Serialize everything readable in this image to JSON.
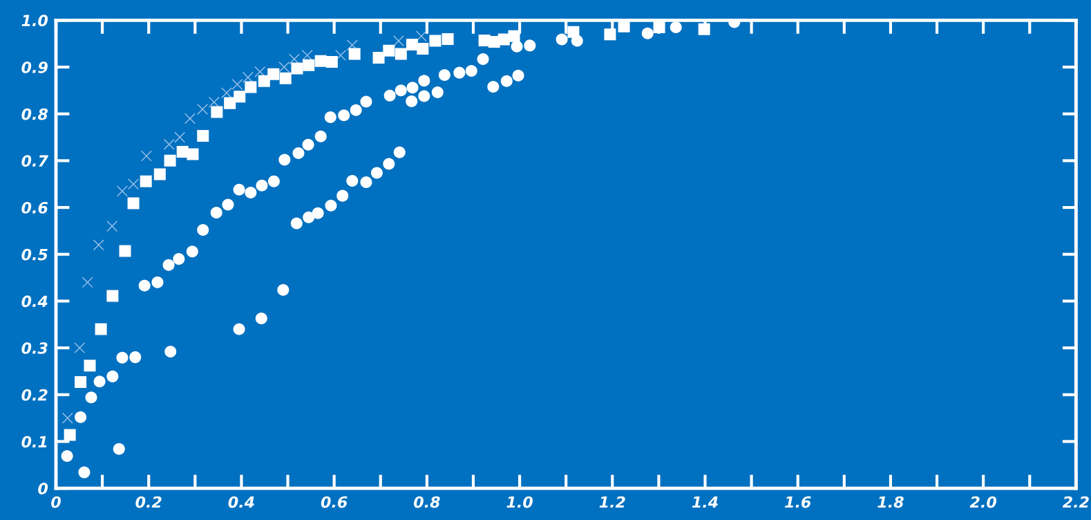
{
  "chart_data": {
    "type": "scatter",
    "xlim": [
      0,
      2.2
    ],
    "xticks": [
      0,
      0.2,
      0.4,
      0.6,
      0.8,
      {
        "value": 1.0,
        "label": "1.0"
      },
      1.2,
      1.4,
      1.6,
      1.8,
      {
        "value": 2.0,
        "label": "2.0"
      },
      2.2
    ],
    "ylim": [
      0,
      1.0
    ],
    "yticks": [
      0,
      0.1,
      0.2,
      0.3,
      0.4,
      0.5,
      0.6,
      0.7,
      0.8,
      0.9,
      {
        "value": 1.0,
        "label": "1.0"
      }
    ],
    "grid": false,
    "legend": false,
    "series": [
      {
        "color": "#9cc3ea",
        "marker": "cross",
        "x": [
          0.025,
          0.051,
          0.068,
          0.092,
          0.121,
          0.143,
          0.167,
          0.195,
          0.244,
          0.267,
          0.289,
          0.316,
          0.341,
          0.368,
          0.391,
          0.414,
          0.44,
          0.492,
          0.514,
          0.542,
          0.614,
          0.639,
          0.739,
          0.788
        ],
        "values": [
          0.15,
          0.3,
          0.44,
          0.52,
          0.56,
          0.635,
          0.65,
          0.71,
          0.735,
          0.75,
          0.79,
          0.81,
          0.825,
          0.845,
          0.863,
          0.878,
          0.89,
          0.9,
          0.917,
          0.925,
          0.925,
          0.947,
          0.956,
          0.966
        ]
      },
      {
        "color": "#ffffff",
        "marker": "square",
        "x": [
          0.03,
          0.053,
          0.073,
          0.097,
          0.122,
          0.149,
          0.167,
          0.194,
          0.224,
          0.246,
          0.273,
          0.295,
          0.317,
          0.347,
          0.375,
          0.396,
          0.42,
          0.449,
          0.469,
          0.495,
          0.52,
          0.545,
          0.571,
          0.595,
          0.644,
          0.696,
          0.718,
          0.744,
          0.768,
          0.791,
          0.818,
          0.845,
          0.924,
          0.945,
          0.966,
          0.988,
          1.116,
          1.195,
          1.225,
          1.301,
          1.398
        ],
        "values": [
          0.114,
          0.227,
          0.262,
          0.34,
          0.411,
          0.507,
          0.609,
          0.656,
          0.671,
          0.7,
          0.719,
          0.714,
          0.753,
          0.804,
          0.823,
          0.837,
          0.857,
          0.87,
          0.885,
          0.876,
          0.897,
          0.904,
          0.913,
          0.911,
          0.928,
          0.92,
          0.935,
          0.928,
          0.948,
          0.939,
          0.956,
          0.96,
          0.957,
          0.954,
          0.959,
          0.966,
          0.975,
          0.97,
          0.987,
          0.985,
          0.981
        ]
      },
      {
        "color": "#ffffff",
        "marker": "circle",
        "x": [
          0.024,
          0.053,
          0.076,
          0.094,
          0.122,
          0.143,
          0.171,
          0.191,
          0.219,
          0.243,
          0.265,
          0.294,
          0.317,
          0.346,
          0.371,
          0.395,
          0.42,
          0.444,
          0.47,
          0.493,
          0.523,
          0.544,
          0.571,
          0.592,
          0.621,
          0.647,
          0.669,
          0.72,
          0.744,
          0.769,
          0.794,
          0.838,
          0.87,
          0.896,
          0.921,
          0.994,
          1.022,
          1.091,
          1.124,
          1.276,
          1.337,
          1.463
        ],
        "values": [
          0.069,
          0.152,
          0.194,
          0.228,
          0.239,
          0.279,
          0.28,
          0.433,
          0.44,
          0.477,
          0.49,
          0.506,
          0.552,
          0.589,
          0.606,
          0.638,
          0.632,
          0.647,
          0.656,
          0.702,
          0.716,
          0.734,
          0.752,
          0.793,
          0.797,
          0.808,
          0.826,
          0.839,
          0.85,
          0.856,
          0.871,
          0.883,
          0.888,
          0.892,
          0.917,
          0.944,
          0.946,
          0.959,
          0.956,
          0.972,
          0.985,
          0.996
        ]
      },
      {
        "color": "#ffffff",
        "marker": "circle",
        "x": [
          0.061,
          0.136,
          0.247,
          0.395,
          0.443,
          0.49,
          0.519,
          0.545,
          0.565,
          0.593,
          0.618,
          0.639,
          0.669,
          0.692,
          0.718,
          0.741,
          0.767,
          0.794,
          0.823,
          0.943,
          0.972,
          0.997
        ],
        "values": [
          0.034,
          0.084,
          0.292,
          0.34,
          0.363,
          0.424,
          0.566,
          0.579,
          0.588,
          0.604,
          0.625,
          0.657,
          0.654,
          0.674,
          0.693,
          0.718,
          0.827,
          0.838,
          0.846,
          0.858,
          0.87,
          0.882
        ]
      }
    ]
  }
}
